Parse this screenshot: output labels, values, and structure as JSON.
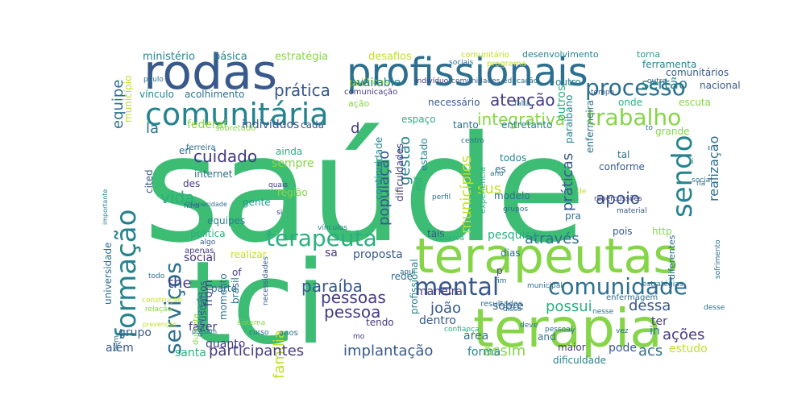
{
  "colors": {
    "background": "#ffffff",
    "palette": [
      "#3dbc74",
      "#86d549",
      "#c0df25",
      "#fde725",
      "#2ab07f",
      "#1f9f88",
      "#25838e",
      "#2d6f8e",
      "#38598c",
      "#443a83",
      "#482173",
      "#440154"
    ]
  },
  "words": [
    {
      "text": "saúde",
      "color": "#3dbc74"
    },
    {
      "text": "tci",
      "color": "#3dbc74"
    },
    {
      "text": "terapeutas",
      "color": "#86d549"
    },
    {
      "text": "terapia",
      "color": "#86d549"
    },
    {
      "text": "profissionais",
      "color": "#2d6f8e"
    },
    {
      "text": "rodas",
      "color": "#38598c"
    },
    {
      "text": "comunitária",
      "color": "#25838e"
    },
    {
      "text": "formação",
      "color": "#25838e"
    },
    {
      "text": "terapeuta",
      "color": "#2ab07f"
    },
    {
      "text": "processo",
      "color": "#2d6f8e"
    },
    {
      "text": "trabalho",
      "color": "#86d549"
    },
    {
      "text": "mental",
      "color": "#38598c"
    },
    {
      "text": "comunidade",
      "color": "#2d6f8e"
    },
    {
      "text": "sendo",
      "color": "#25838e"
    },
    {
      "text": "serviços",
      "color": "#2d6f8e"
    },
    {
      "text": "integrativa",
      "color": "#86d549"
    },
    {
      "text": "atenção",
      "color": "#443a83"
    },
    {
      "text": "prática",
      "color": "#38598c"
    },
    {
      "text": "sertão",
      "color": "#25838e"
    },
    {
      "text": "equipe",
      "color": "#2d6f8e"
    },
    {
      "text": "cuidado",
      "color": "#443a83"
    },
    {
      "text": "população",
      "color": "#38598c"
    },
    {
      "text": "gestão",
      "color": "#25838e"
    },
    {
      "text": "municípios",
      "color": "#c0df25"
    },
    {
      "text": "práticas",
      "color": "#38598c"
    },
    {
      "text": "realização",
      "color": "#2d6f8e"
    },
    {
      "text": "apoio",
      "color": "#38598c"
    },
    {
      "text": "sus",
      "color": "#c0df25"
    },
    {
      "text": "vida",
      "color": "#2ab07f"
    },
    {
      "text": "paraíba",
      "color": "#38598c"
    },
    {
      "text": "pessoas",
      "color": "#443a83"
    },
    {
      "text": "pessoa",
      "color": "#443a83"
    },
    {
      "text": "família",
      "color": "#c0df25"
    },
    {
      "text": "através",
      "color": "#2d6f8e"
    },
    {
      "text": "possui",
      "color": "#2ab07f"
    },
    {
      "text": "dessa",
      "color": "#38598c"
    },
    {
      "text": "participantes",
      "color": "#443a83"
    },
    {
      "text": "implantação",
      "color": "#38598c"
    },
    {
      "text": "assim",
      "color": "#86d549"
    },
    {
      "text": "acs",
      "color": "#2d6f8e"
    },
    {
      "text": "ações",
      "color": "#443a83"
    },
    {
      "text": "the",
      "color": "#443a83"
    },
    {
      "text": "joão",
      "color": "#38598c"
    },
    {
      "text": "la",
      "color": "#2d6f8e"
    },
    {
      "text": "d",
      "color": "#443a83"
    },
    {
      "text": "ministério",
      "color": "#25838e"
    },
    {
      "text": "básica",
      "color": "#25838e"
    },
    {
      "text": "estratégia",
      "color": "#86d549"
    },
    {
      "text": "desafios",
      "color": "#c0df25"
    },
    {
      "text": "comunitário",
      "color": "#c0df25"
    },
    {
      "text": "desenvolvimento",
      "color": "#25838e"
    },
    {
      "text": "torna",
      "color": "#1f9f88"
    },
    {
      "text": "ferramenta",
      "color": "#25838e"
    },
    {
      "text": "políticas",
      "color": "#c0df25"
    },
    {
      "text": "vínculo",
      "color": "#25838e"
    },
    {
      "text": "acolhimento",
      "color": "#2d6f8e"
    },
    {
      "text": "available",
      "color": "#25838e"
    },
    {
      "text": "necessário",
      "color": "#38598c"
    },
    {
      "text": "outro",
      "color": "#25838e"
    },
    {
      "text": "outros",
      "color": "#2ab07f"
    },
    {
      "text": "federal",
      "color": "#86d549"
    },
    {
      "text": "indivíduos",
      "color": "#38598c"
    },
    {
      "text": "espaço",
      "color": "#2ab07f"
    },
    {
      "text": "entretanto",
      "color": "#25838e"
    },
    {
      "text": "grande",
      "color": "#86d549"
    },
    {
      "text": "ainda",
      "color": "#2ab07f"
    },
    {
      "text": "sempre",
      "color": "#86d549"
    },
    {
      "text": "internet",
      "color": "#2d6f8e"
    },
    {
      "text": "cited",
      "color": "#38598c"
    },
    {
      "text": "região",
      "color": "#86d549"
    },
    {
      "text": "gente",
      "color": "#1f9f88"
    },
    {
      "text": "equipes",
      "color": "#25838e"
    },
    {
      "text": "política",
      "color": "#2ab07f"
    },
    {
      "text": "social",
      "color": "#443a83"
    },
    {
      "text": "realizar",
      "color": "#c0df25"
    },
    {
      "text": "pesquisa",
      "color": "#2ab07f"
    },
    {
      "text": "http",
      "color": "#86d549"
    },
    {
      "text": "pois",
      "color": "#38598c"
    },
    {
      "text": "proposta",
      "color": "#38598c"
    },
    {
      "text": "rede",
      "color": "#2d6f8e"
    },
    {
      "text": "maneira",
      "color": "#443a83"
    },
    {
      "text": "from",
      "color": "#443a83"
    },
    {
      "text": "usuários",
      "color": "#38598c"
    },
    {
      "text": "brasil",
      "color": "#2d6f8e"
    },
    {
      "text": "momento",
      "color": "#2d6f8e"
    },
    {
      "text": "universidade",
      "color": "#2d6f8e"
    },
    {
      "text": "sobre",
      "color": "#38598c"
    },
    {
      "text": "dentro",
      "color": "#38598c"
    },
    {
      "text": "tendo",
      "color": "#443a83"
    },
    {
      "text": "fazer",
      "color": "#443a83"
    },
    {
      "text": "grupo",
      "color": "#38598c"
    },
    {
      "text": "além",
      "color": "#38598c"
    },
    {
      "text": "quanto",
      "color": "#443a83"
    },
    {
      "text": "santa",
      "color": "#2ab07f"
    },
    {
      "text": "forma",
      "color": "#25838e"
    },
    {
      "text": "pode",
      "color": "#38598c"
    },
    {
      "text": "estudo",
      "color": "#c0df25"
    },
    {
      "text": "ter",
      "color": "#443a83"
    },
    {
      "text": "in",
      "color": "#2d6f8e"
    },
    {
      "text": "esf",
      "color": "#2ab07f"
    },
    {
      "text": "estado",
      "color": "#25838e"
    },
    {
      "text": "es",
      "color": "#2d6f8e"
    },
    {
      "text": "todos",
      "color": "#25838e"
    },
    {
      "text": "conforme",
      "color": "#38598c"
    },
    {
      "text": "modelo",
      "color": "#2d6f8e"
    },
    {
      "text": "tal",
      "color": "#2d6f8e"
    },
    {
      "text": "pra",
      "color": "#2d6f8e"
    },
    {
      "text": "sa",
      "color": "#443a83"
    },
    {
      "text": "tais",
      "color": "#38598c"
    },
    {
      "text": "continuidade",
      "color": "#25838e"
    },
    {
      "text": "dificuldades",
      "color": "#443a83"
    },
    {
      "text": "paraibano",
      "color": "#25838e"
    },
    {
      "text": "enfermeira",
      "color": "#2d6f8e"
    },
    {
      "text": "profissional",
      "color": "#25838e"
    },
    {
      "text": "experiência",
      "color": "#2ab07f"
    },
    {
      "text": "resultados",
      "color": "#2d6f8e"
    },
    {
      "text": "área",
      "color": "#2d6f8e"
    },
    {
      "text": "onde",
      "color": "#2ab07f"
    },
    {
      "text": "nacional",
      "color": "#38598c"
    },
    {
      "text": "comunitários",
      "color": "#38598c"
    },
    {
      "text": "escuta",
      "color": "#86d549"
    },
    {
      "text": "ferreira",
      "color": "#2d6f8e"
    },
    {
      "text": "sobretudo",
      "color": "#86d549"
    },
    {
      "text": "comunicação",
      "color": "#443a83"
    },
    {
      "text": "indivíduo",
      "color": "#443a83"
    },
    {
      "text": "comunidades",
      "color": "#38598c"
    },
    {
      "text": "educação",
      "color": "#2d6f8e"
    },
    {
      "text": "programa",
      "color": "#c0df25"
    },
    {
      "text": "tempo",
      "color": "#38598c"
    },
    {
      "text": "falta",
      "color": "#2d6f8e"
    },
    {
      "text": "de",
      "color": "#c0df25"
    },
    {
      "text": "perfil",
      "color": "#2d6f8e"
    },
    {
      "text": "grupos",
      "color": "#2d6f8e"
    },
    {
      "text": "repercussões",
      "color": "#443a83"
    },
    {
      "text": "material",
      "color": "#38598c"
    },
    {
      "text": "dias",
      "color": "#2d6f8e"
    },
    {
      "text": "observa",
      "color": "#2ab07f"
    },
    {
      "text": "enfermagem",
      "color": "#2d6f8e"
    },
    {
      "text": "and",
      "color": "#2d6f8e"
    },
    {
      "text": "maior",
      "color": "#443a83"
    },
    {
      "text": "dificuldade",
      "color": "#25838e"
    },
    {
      "text": "confiança",
      "color": "#2ab07f"
    },
    {
      "text": "pessoal",
      "color": "#2d6f8e"
    },
    {
      "text": "necessidades",
      "color": "#38598c"
    },
    {
      "text": "vínculos",
      "color": "#25838e"
    },
    {
      "text": "importante",
      "color": "#25838e"
    },
    {
      "text": "filha",
      "color": "#2d6f8e"
    },
    {
      "text": "algo",
      "color": "#38598c"
    },
    {
      "text": "apenas",
      "color": "#443a83"
    },
    {
      "text": "durante",
      "color": "#86d549"
    },
    {
      "text": "prevenção",
      "color": "#c0df25"
    },
    {
      "text": "construção",
      "color": "#c0df25"
    },
    {
      "text": "relação",
      "color": "#86d549"
    },
    {
      "text": "sofrimento",
      "color": "#2d6f8e"
    },
    {
      "text": "diferentes",
      "color": "#2d6f8e"
    },
    {
      "text": "of",
      "color": "#443a83"
    },
    {
      "text": "todo",
      "color": "#2d6f8e"
    },
    {
      "text": "paulo",
      "color": "#2d6f8e"
    },
    {
      "text": "ação",
      "color": "#86d549"
    },
    {
      "text": "parte",
      "color": "#2d6f8e"
    },
    {
      "text": "cada",
      "color": "#38598c"
    },
    {
      "text": "tanto",
      "color": "#2d6f8e"
    },
    {
      "text": "des",
      "color": "#443a83"
    },
    {
      "text": "nesse",
      "color": "#2d6f8e"
    },
    {
      "text": "desse",
      "color": "#2d6f8e"
    },
    {
      "text": "sistema",
      "color": "#86d549"
    },
    {
      "text": "curso",
      "color": "#2d6f8e"
    },
    {
      "text": "anos",
      "color": "#2d6f8e"
    },
    {
      "text": "mo",
      "color": "#443a83"
    },
    {
      "text": "deve",
      "color": "#2d6f8e"
    },
    {
      "text": "disso",
      "color": "#2d6f8e"
    },
    {
      "text": "aqui",
      "color": "#2d6f8e"
    },
    {
      "text": "vez",
      "color": "#2d6f8e"
    },
    {
      "text": "estratégias",
      "color": "#2d6f8e"
    },
    {
      "text": "social",
      "color": "#2d6f8e"
    },
    {
      "text": "sociais",
      "color": "#2d6f8e"
    },
    {
      "text": "outra",
      "color": "#2d6f8e"
    },
    {
      "text": "centro",
      "color": "#2d6f8e"
    },
    {
      "text": "municipal",
      "color": "#2d6f8e"
    },
    {
      "text": "fim",
      "color": "#2d6f8e"
    },
    {
      "text": "ano",
      "color": "#2d6f8e"
    },
    {
      "text": "si",
      "color": "#443a83"
    },
    {
      "text": "quais",
      "color": "#443a83"
    },
    {
      "text": "organização",
      "color": "#2d6f8e"
    },
    {
      "text": "bem",
      "color": "#2d6f8e"
    },
    {
      "text": "capacidade",
      "color": "#2d6f8e"
    },
    {
      "text": "possam",
      "color": "#2d6f8e"
    },
    {
      "text": "município",
      "color": "#c0df25"
    },
    {
      "text": "p",
      "color": "#443a83"
    },
    {
      "text": "en",
      "color": "#2d6f8e"
    },
    {
      "text": "y",
      "color": "#2d6f8e"
    },
    {
      "text": "i",
      "color": "#2d6f8e"
    },
    {
      "text": "to",
      "color": "#2d6f8e"
    },
    {
      "text": "na",
      "color": "#2d6f8e"
    }
  ]
}
